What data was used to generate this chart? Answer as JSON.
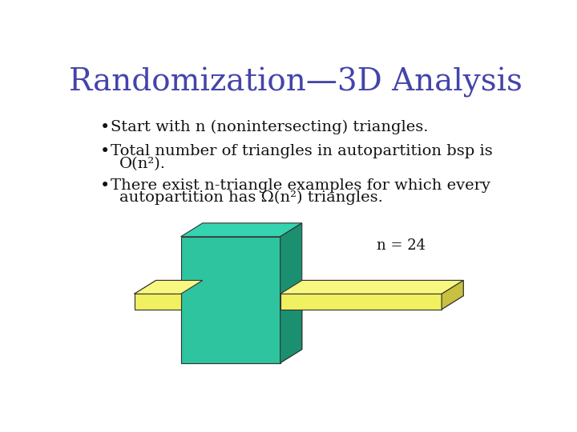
{
  "title": "Randomization—3D Analysis",
  "title_color": "#4444aa",
  "title_fontsize": 28,
  "background_color": "#ffffff",
  "bullet1": "Start with n (nonintersecting) triangles.",
  "bullet2_line1": "Total number of triangles in autopartition bsp is",
  "bullet2_line2": "O(n²).",
  "bullet3_line1": "There exist n-triangle examples for which every",
  "bullet3_line2": "autopartition has Ω(n²) triangles.",
  "n_label": "n = 24",
  "teal_color": "#2ec4a0",
  "teal_dark": "#1a9070",
  "teal_top": "#35d4b0",
  "yellow_color": "#f0f060",
  "yellow_dark": "#c8c040",
  "yellow_top": "#f8f880",
  "text_color": "#111111",
  "bullet_fontsize": 14,
  "n_label_fontsize": 13
}
